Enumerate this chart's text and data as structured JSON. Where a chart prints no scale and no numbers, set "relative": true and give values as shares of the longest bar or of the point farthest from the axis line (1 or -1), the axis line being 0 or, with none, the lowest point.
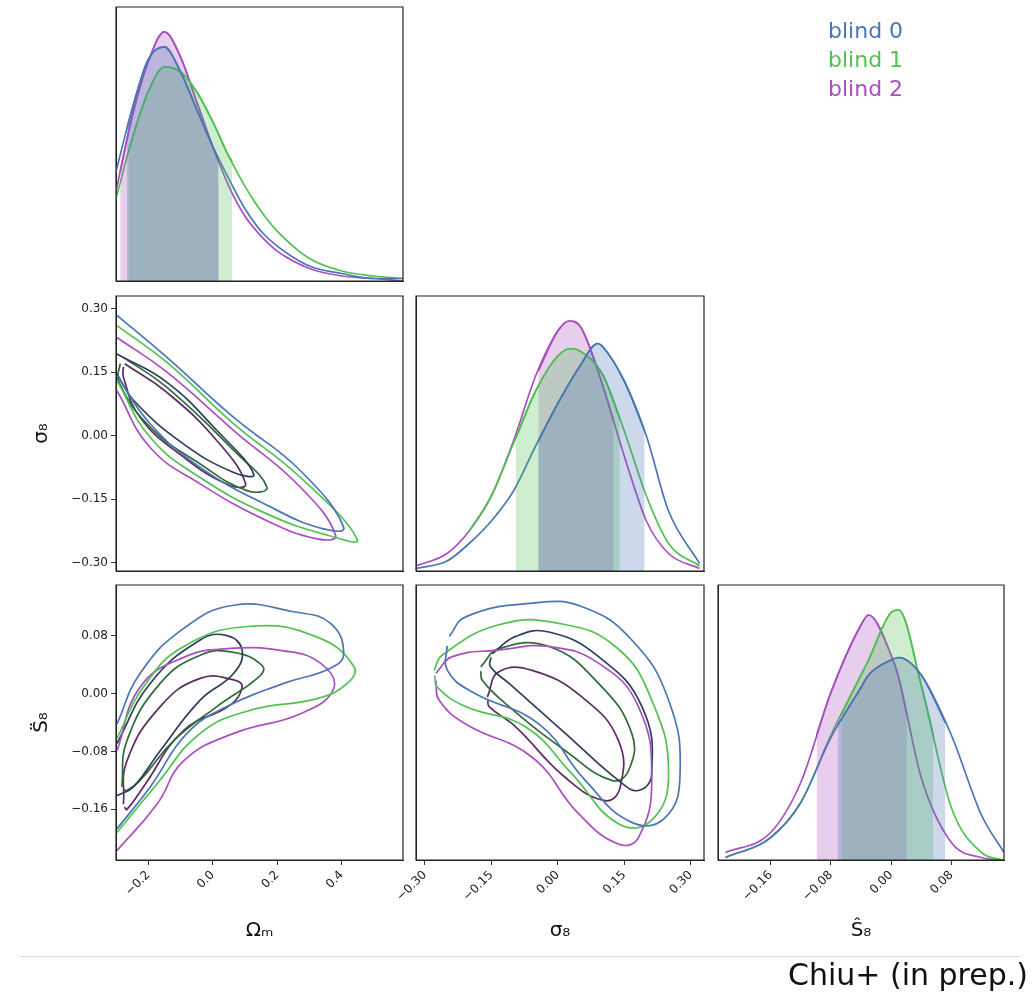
{
  "chart_data": [
    {
      "type": "line",
      "relative": true,
      "xlim": [
        -0.3,
        0.59
      ],
      "tick_labels": false,
      "legend": "right",
      "x": [
        -0.3,
        -0.25,
        -0.2,
        -0.15,
        -0.1,
        -0.05,
        0,
        0.05,
        0.1,
        0.15,
        0.2,
        0.3,
        0.4,
        0.5,
        0.59
      ],
      "series": [
        {
          "type": "area",
          "color": "#4a76b5",
          "x": [
            -0.266,
            -0.25,
            -0.2,
            -0.15,
            -0.1,
            -0.05,
            0,
            0.018
          ],
          "values": [
            0.61,
            0.69,
            0.89,
            0.94,
            0.84,
            0.69,
            0.54,
            0.49
          ]
        },
        {
          "type": "area",
          "color": "#52c152",
          "x": [
            -0.261,
            -0.25,
            -0.2,
            -0.15,
            -0.1,
            -0.05,
            0,
            0.05,
            0.06
          ],
          "values": [
            0.52,
            0.57,
            0.76,
            0.86,
            0.84,
            0.76,
            0.64,
            0.5,
            0.48
          ]
        },
        {
          "type": "area",
          "color": "#a950c0",
          "x": [
            -0.287,
            -0.25,
            -0.2,
            -0.15,
            -0.1,
            -0.05,
            0,
            0.018
          ],
          "values": [
            0.44,
            0.66,
            0.88,
            1,
            0.9,
            0.72,
            0.54,
            0.48
          ]
        },
        {
          "name": "blind 0",
          "color": "#4a76b5",
          "values": [
            0.44,
            0.69,
            0.89,
            0.94,
            0.84,
            0.69,
            0.54,
            0.41,
            0.29,
            0.2,
            0.14,
            0.06,
            0.03,
            0.01,
            0.01
          ]
        },
        {
          "name": "blind 1",
          "color": "#52c152",
          "values": [
            0.33,
            0.57,
            0.76,
            0.86,
            0.84,
            0.76,
            0.64,
            0.5,
            0.38,
            0.28,
            0.2,
            0.09,
            0.04,
            0.02,
            0.01
          ]
        },
        {
          "name": "blind 2",
          "color": "#a950c0",
          "values": [
            0.36,
            0.66,
            0.88,
            1,
            0.9,
            0.72,
            0.54,
            0.38,
            0.26,
            0.18,
            0.12,
            0.05,
            0.02,
            0.01,
            0
          ]
        }
      ]
    },
    {
      "type": "line",
      "ylabel": "σ₈",
      "xlim": [
        -0.3,
        0.59
      ],
      "ylim": [
        -0.32,
        0.33
      ],
      "tick_labels": "y",
      "yticks": [
        {
          "value": -0.3,
          "label": "−0.30"
        },
        {
          "value": -0.15,
          "label": "−0.15"
        },
        {
          "value": 0,
          "label": "0.00"
        },
        {
          "value": 0.15,
          "label": "0.15"
        },
        {
          "value": 0.3,
          "label": "0.30"
        }
      ],
      "series": [
        {
          "color": "#4a76b5",
          "x": [
            -0.297,
            -0.142,
            0.065,
            0.272,
            0.406,
            0.34,
            0.18,
            -0.039,
            -0.194,
            -0.297
          ],
          "values": [
            0.284,
            0.185,
            0.043,
            -0.083,
            -0.217,
            -0.22,
            -0.169,
            -0.075,
            0.028,
            0.142
          ]
        },
        {
          "color": "#52c152",
          "x": [
            -0.297,
            -0.142,
            0.065,
            0.272,
            0.448,
            0.359,
            0.168,
            -0.039,
            -0.194,
            -0.297
          ],
          "values": [
            0.26,
            0.173,
            0.028,
            -0.099,
            -0.245,
            -0.236,
            -0.185,
            -0.099,
            -0.004,
            0.13
          ]
        },
        {
          "color": "#a950c0",
          "x": [
            -0.297,
            -0.142,
            0.065,
            0.272,
            0.381,
            0.324,
            0.168,
            -0.039,
            -0.194,
            -0.297
          ],
          "values": [
            0.232,
            0.15,
            0.012,
            -0.122,
            -0.236,
            -0.244,
            -0.201,
            -0.114,
            -0.028,
            0.106
          ]
        },
        {
          "color": "#2d3f5e",
          "x": [
            -0.297,
            -0.142,
            0.013,
            0.127,
            0.065,
            -0.09,
            -0.245,
            -0.297
          ],
          "values": [
            0.193,
            0.126,
            0.012,
            -0.091,
            -0.087,
            -0.02,
            0.083,
            0.146
          ]
        },
        {
          "color": "#336b38",
          "x": [
            -0.277,
            -0.142,
            0.065,
            0.168,
            0.106,
            -0.039,
            -0.194,
            -0.293,
            -0.287
          ],
          "values": [
            0.185,
            0.114,
            -0.035,
            -0.122,
            -0.13,
            -0.067,
            0.02,
            0.13,
            0.17
          ]
        },
        {
          "color": "#5c2d63",
          "x": [
            -0.273,
            -0.142,
            0.013,
            0.102,
            0.054,
            -0.09,
            -0.225,
            -0.277,
            -0.277
          ],
          "values": [
            0.17,
            0.102,
            -0.012,
            -0.114,
            -0.118,
            -0.051,
            0.043,
            0.138,
            0.162
          ]
        }
      ]
    },
    {
      "type": "line",
      "relative": true,
      "xlim": [
        -0.32,
        0.33
      ],
      "tick_labels": false,
      "series": [
        {
          "type": "area",
          "color": "#4a76b5",
          "x": [
            -0.044,
            0,
            0.05,
            0.09,
            0.1,
            0.15,
            0.196
          ],
          "values": [
            0.52,
            0.67,
            0.82,
            0.91,
            0.9,
            0.76,
            0.56
          ]
        },
        {
          "type": "area",
          "color": "#52c152",
          "x": [
            -0.095,
            -0.05,
            0,
            0.03,
            0.05,
            0.1,
            0.14
          ],
          "values": [
            0.53,
            0.72,
            0.86,
            0.89,
            0.88,
            0.79,
            0.61
          ]
        },
        {
          "type": "area",
          "color": "#a950c0",
          "x": [
            -0.044,
            0,
            0.025,
            0.05,
            0.1,
            0.126
          ],
          "values": [
            0.8,
            0.96,
            1,
            0.98,
            0.75,
            0.6
          ]
        },
        {
          "color": "#4a76b5",
          "x": [
            -0.32,
            -0.25,
            -0.2,
            -0.15,
            -0.1,
            -0.05,
            0,
            0.05,
            0.09,
            0.1,
            0.15,
            0.2,
            0.25,
            0.32
          ],
          "values": [
            0.01,
            0.04,
            0.11,
            0.2,
            0.32,
            0.5,
            0.67,
            0.82,
            0.91,
            0.9,
            0.76,
            0.54,
            0.24,
            0.03
          ]
        },
        {
          "color": "#52c152",
          "x": [
            -0.2,
            -0.15,
            -0.1,
            -0.05,
            0,
            0.03,
            0.05,
            0.1,
            0.15,
            0.2,
            0.25,
            0.32
          ],
          "values": [
            0.16,
            0.3,
            0.51,
            0.72,
            0.86,
            0.89,
            0.88,
            0.79,
            0.56,
            0.3,
            0.11,
            0.02
          ]
        },
        {
          "color": "#a950c0",
          "x": [
            -0.32,
            -0.25,
            -0.2,
            -0.15,
            -0.1,
            -0.05,
            0,
            0.025,
            0.05,
            0.1,
            0.15,
            0.2,
            0.25,
            0.32
          ],
          "values": [
            0.02,
            0.07,
            0.16,
            0.3,
            0.52,
            0.78,
            0.96,
            1,
            0.98,
            0.75,
            0.46,
            0.2,
            0.07,
            0.01
          ]
        }
      ]
    },
    {
      "type": "line",
      "xlabel": "Ωₘ",
      "ylabel": "S̈₈",
      "xlim": [
        -0.3,
        0.59
      ],
      "ylim": [
        -0.23,
        0.15
      ],
      "xticks": [
        {
          "value": -0.2,
          "label": "−0.2"
        },
        {
          "value": 0,
          "label": "0.0"
        },
        {
          "value": 0.2,
          "label": "0.2"
        },
        {
          "value": 0.4,
          "label": "0.4"
        }
      ],
      "yticks": [
        {
          "value": -0.16,
          "label": "−0.16"
        },
        {
          "value": -0.08,
          "label": "−0.08"
        },
        {
          "value": 0,
          "label": "0.00"
        },
        {
          "value": 0.08,
          "label": "0.08"
        }
      ],
      "series": [
        {
          "color": "#4a76b5",
          "x": [
            -0.297,
            -0.225,
            -0.09,
            0.065,
            0.251,
            0.365,
            0.406,
            0.365,
            0.22,
            0.044,
            -0.08,
            -0.194,
            -0.297
          ],
          "values": [
            -0.042,
            0.028,
            0.09,
            0.122,
            0.113,
            0.097,
            0.055,
            0.035,
            0.014,
            -0.018,
            -0.055,
            -0.129,
            -0.187
          ]
        },
        {
          "color": "#52c152",
          "x": [
            -0.297,
            -0.215,
            -0.09,
            0.117,
            0.324,
            0.438,
            0.417,
            0.324,
            0.117,
            -0.039,
            -0.173,
            -0.297
          ],
          "values": [
            -0.062,
            0.009,
            0.065,
            0.093,
            0.078,
            0.037,
            0.014,
            -0.007,
            -0.023,
            -0.055,
            -0.125,
            -0.192
          ]
        },
        {
          "color": "#a950c0",
          "x": [
            -0.297,
            -0.225,
            -0.09,
            0.044,
            0.22,
            0.334,
            0.375,
            0.272,
            0.065,
            -0.09,
            -0.173,
            -0.297
          ],
          "values": [
            -0.079,
            0.009,
            0.05,
            0.062,
            0.059,
            0.042,
            0.007,
            -0.028,
            -0.055,
            -0.093,
            -0.153,
            -0.217
          ]
        },
        {
          "color": "#2d3f5e",
          "x": [
            -0.297,
            -0.194,
            -0.039,
            0.044,
            0.091,
            0.065,
            -0.039,
            -0.163,
            -0.246,
            -0.297
          ],
          "values": [
            -0.069,
            0.014,
            0.074,
            0.08,
            0.06,
            0.028,
            -0.009,
            -0.079,
            -0.129,
            -0.141
          ]
        },
        {
          "color": "#336b38",
          "x": [
            -0.282,
            -0.266,
            -0.163,
            -0.039,
            0.065,
            0.153,
            0.148,
            0.013,
            -0.121,
            -0.225,
            -0.266,
            -0.278
          ],
          "values": [
            -0.129,
            -0.065,
            0.014,
            0.053,
            0.057,
            0.039,
            0.025,
            -0.018,
            -0.065,
            -0.12,
            -0.134,
            -0.132
          ]
        },
        {
          "color": "#5c2d63",
          "x": [
            -0.277,
            -0.266,
            -0.163,
            -0.039,
            0.065,
            0.091,
            0.054,
            -0.09,
            -0.215,
            -0.266,
            -0.274
          ],
          "values": [
            -0.153,
            -0.093,
            -0.018,
            0.021,
            0.019,
            0.009,
            -0.016,
            -0.051,
            -0.129,
            -0.16,
            -0.157
          ]
        }
      ]
    },
    {
      "type": "line",
      "xlabel": "σ₈",
      "xlim": [
        -0.32,
        0.33
      ],
      "ylim": [
        -0.23,
        0.15
      ],
      "tick_labels": "x",
      "xticks": [
        {
          "value": -0.3,
          "label": "−0.30"
        },
        {
          "value": -0.15,
          "label": "−0.15"
        },
        {
          "value": 0,
          "label": "0.00"
        },
        {
          "value": 0.15,
          "label": "0.15"
        },
        {
          "value": 0.3,
          "label": "0.30"
        }
      ],
      "series": [
        {
          "color": "#4a76b5",
          "x": [
            -0.245,
            -0.208,
            -0.058,
            0.055,
            0.167,
            0.25,
            0.276,
            0.243,
            0.167,
            0.062,
            -0.043,
            -0.193,
            -0.249,
            -0.25
          ],
          "values": [
            0.079,
            0.106,
            0.125,
            0.12,
            0.074,
            -0.009,
            -0.111,
            -0.171,
            -0.178,
            -0.12,
            -0.042,
            0.002,
            0.032,
            0.066
          ]
        },
        {
          "color": "#52c152",
          "x": [
            -0.279,
            -0.261,
            -0.133,
            0.002,
            0.13,
            0.212,
            0.25,
            0.212,
            0.137,
            0.032,
            -0.073,
            -0.208,
            -0.272,
            -0.278
          ],
          "values": [
            0.032,
            0.053,
            0.095,
            0.097,
            0.065,
            -0.009,
            -0.111,
            -0.175,
            -0.18,
            -0.111,
            -0.046,
            -0.018,
            0.009,
            0.025
          ]
        },
        {
          "color": "#a950c0",
          "x": [
            -0.275,
            -0.238,
            -0.133,
            -0.02,
            0.092,
            0.182,
            0.212,
            0.182,
            0.137,
            0.047,
            -0.058,
            -0.208,
            -0.268,
            -0.275
          ],
          "values": [
            0.028,
            0.051,
            0.06,
            0.065,
            0.042,
            -0.018,
            -0.12,
            -0.199,
            -0.208,
            -0.166,
            -0.088,
            -0.042,
            -0.009,
            0.018
          ]
        },
        {
          "color": "#2d3f5e",
          "x": [
            -0.148,
            -0.095,
            -0.02,
            0.092,
            0.19,
            0.212,
            0.182,
            0.137,
            0.017,
            -0.11,
            -0.152,
            -0.151
          ],
          "values": [
            0.055,
            0.079,
            0.085,
            0.051,
            -0.018,
            -0.111,
            -0.134,
            -0.12,
            -0.055,
            0.014,
            0.037,
            0.05
          ]
        },
        {
          "color": "#336b38",
          "x": [
            -0.174,
            -0.133,
            -0.02,
            0.092,
            0.167,
            0.16,
            0.122,
            0.017,
            -0.11,
            -0.17,
            -0.174
          ],
          "values": [
            0.037,
            0.062,
            0.065,
            0.014,
            -0.055,
            -0.106,
            -0.12,
            -0.079,
            -0.018,
            0.018,
            0.031
          ]
        },
        {
          "color": "#5c2d63",
          "x": [
            -0.159,
            -0.133,
            -0.058,
            0.055,
            0.137,
            0.141,
            0.107,
            0.017,
            -0.095,
            -0.155,
            -0.158
          ],
          "values": [
            -0.005,
            0.03,
            0.032,
            -0.005,
            -0.065,
            -0.129,
            -0.148,
            -0.116,
            -0.046,
            -0.018,
            -0.009
          ]
        }
      ]
    },
    {
      "type": "line",
      "relative": true,
      "xlabel": "Ŝ₈",
      "xlim": [
        -0.23,
        0.15
      ],
      "tick_labels": "x",
      "xticks": [
        {
          "value": -0.16,
          "label": "−0.16"
        },
        {
          "value": -0.08,
          "label": "−0.08"
        },
        {
          "value": 0,
          "label": "0.00"
        },
        {
          "value": 0.08,
          "label": "0.08"
        }
      ],
      "x": [
        -0.22,
        -0.16,
        -0.12,
        -0.08,
        -0.04,
        -0.03,
        0,
        0.01,
        0.04,
        0.08,
        0.12,
        0.15
      ],
      "series": [
        {
          "type": "area",
          "color": "#4a76b5",
          "x": [
            -0.071,
            -0.04,
            -0.03,
            0,
            0.01,
            0.04,
            0.072
          ],
          "values": [
            0.54,
            0.69,
            0.74,
            0.8,
            0.81,
            0.74,
            0.55
          ]
        },
        {
          "type": "area",
          "color": "#52c152",
          "x": [
            -0.066,
            -0.04,
            -0.03,
            0,
            0.01,
            0.04,
            0.056
          ],
          "values": [
            0.58,
            0.74,
            0.8,
            0.99,
            1,
            0.7,
            0.5
          ]
        },
        {
          "type": "area",
          "color": "#a950c0",
          "x": [
            -0.099,
            -0.08,
            -0.04,
            -0.03,
            0,
            0.01,
            0.021
          ],
          "values": [
            0.5,
            0.67,
            0.94,
            0.98,
            0.82,
            0.73,
            0.58
          ]
        },
        {
          "color": "#4a76b5",
          "values": [
            0.01,
            0.09,
            0.23,
            0.49,
            0.69,
            0.74,
            0.8,
            0.81,
            0.74,
            0.5,
            0.18,
            0.03
          ]
        },
        {
          "color": "#52c152",
          "values": [
            0.01,
            0.09,
            0.23,
            0.5,
            0.74,
            0.8,
            0.99,
            1,
            0.7,
            0.21,
            0.03,
            0
          ]
        },
        {
          "color": "#a950c0",
          "values": [
            0.03,
            0.11,
            0.31,
            0.67,
            0.94,
            0.98,
            0.82,
            0.73,
            0.33,
            0.07,
            0.01,
            0
          ]
        }
      ],
      "annotations": [
        "Chiu+ (in prep.)"
      ]
    }
  ]
}
